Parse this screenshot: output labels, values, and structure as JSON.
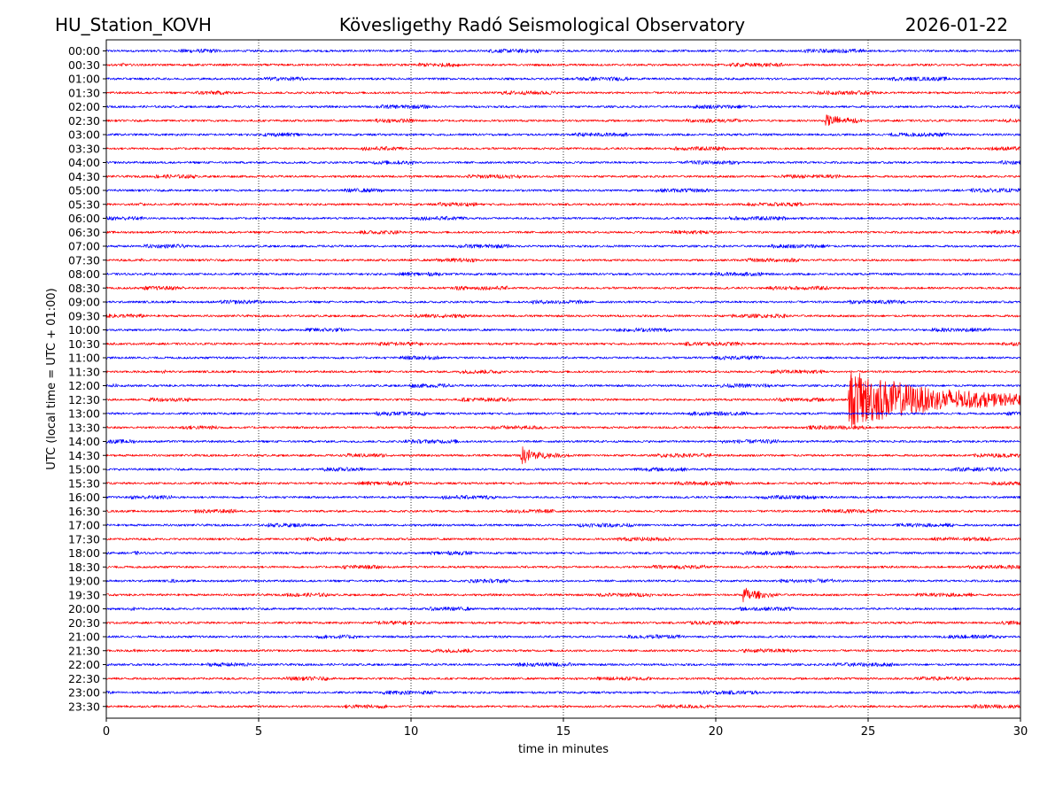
{
  "header": {
    "station": "HU_Station_KOVH",
    "observatory": "Kövesligethy Radó Seismological Observatory",
    "date": "2026-01-22"
  },
  "colors": {
    "trace_even": "#0000ff",
    "trace_odd": "#ff0000",
    "grid": "#000000",
    "background": "#ffffff"
  },
  "chart_data": {
    "type": "line",
    "title": "Kövesligethy Radó Seismological Observatory",
    "xlabel": "time in minutes",
    "ylabel": "UTC (local time = UTC + 01:00)",
    "xlim": [
      0,
      30
    ],
    "x_ticks": [
      "0",
      "5",
      "10",
      "15",
      "20",
      "25",
      "30"
    ],
    "x_tick_values": [
      0,
      5,
      10,
      15,
      20,
      25,
      30
    ],
    "grid": "vertical dotted lines at x ticks",
    "rows": [
      "00:00",
      "00:30",
      "01:00",
      "01:30",
      "02:00",
      "02:30",
      "03:00",
      "03:30",
      "04:00",
      "04:30",
      "05:00",
      "05:30",
      "06:00",
      "06:30",
      "07:00",
      "07:30",
      "08:00",
      "08:30",
      "09:00",
      "09:30",
      "10:00",
      "10:30",
      "11:00",
      "11:30",
      "12:00",
      "12:30",
      "13:00",
      "13:30",
      "14:00",
      "14:30",
      "15:00",
      "15:30",
      "16:00",
      "16:30",
      "17:00",
      "17:30",
      "18:00",
      "18:30",
      "19:00",
      "19:30",
      "20:00",
      "20:30",
      "21:00",
      "21:30",
      "22:00",
      "22:30",
      "23:00",
      "23:30"
    ],
    "row_colors": "alternating blue (even rows) / red (odd rows)",
    "noise_amplitude": 0.25,
    "events": [
      {
        "row": "02:30",
        "start_min": 23.6,
        "peak_amplitude": 1.4,
        "decay_min": 0.6,
        "duration_min": 1.2
      },
      {
        "row": "12:30",
        "start_min": 24.35,
        "peak_amplitude": 6.0,
        "decay_min": 2.5,
        "duration_min": 5.65
      },
      {
        "row": "14:30",
        "start_min": 13.6,
        "peak_amplitude": 2.0,
        "decay_min": 0.5,
        "duration_min": 1.6
      },
      {
        "row": "19:30",
        "start_min": 20.9,
        "peak_amplitude": 1.6,
        "decay_min": 0.45,
        "duration_min": 1.2
      }
    ]
  }
}
